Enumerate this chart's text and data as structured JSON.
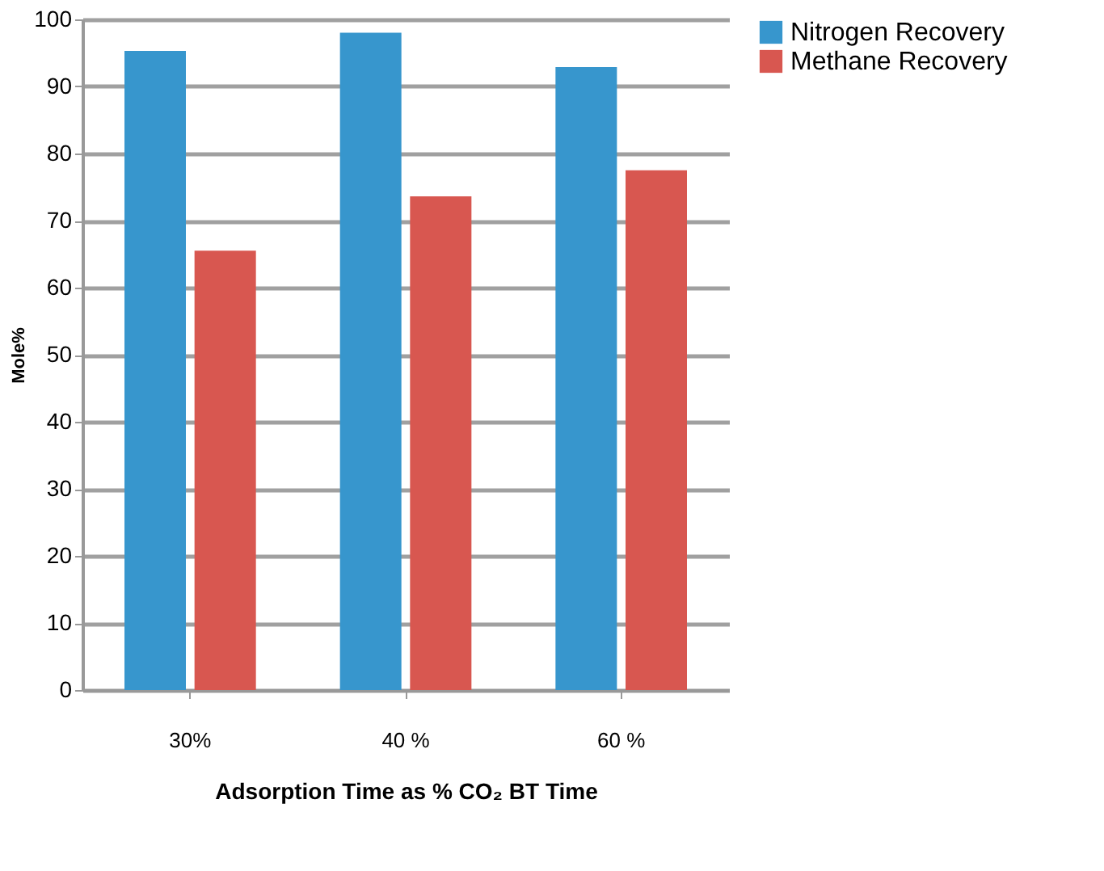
{
  "chart_data": {
    "type": "bar",
    "xlabel": "Adsorption Time as % CO₂ BT Time",
    "ylabel": "Mole%",
    "categories": [
      "30%",
      "40 %",
      "60 %"
    ],
    "series": [
      {
        "name": "Nitrogen Recovery",
        "color": "#3796cd",
        "values": [
          95.3,
          98.0,
          92.9
        ]
      },
      {
        "name": "Methane Recovery",
        "color": "#d85750",
        "values": [
          65.5,
          73.6,
          77.5
        ]
      }
    ],
    "ylim": [
      0,
      100
    ],
    "yticks": [
      0,
      10,
      20,
      30,
      40,
      50,
      60,
      70,
      80,
      90,
      100
    ],
    "grid": "y",
    "legend": "right"
  }
}
